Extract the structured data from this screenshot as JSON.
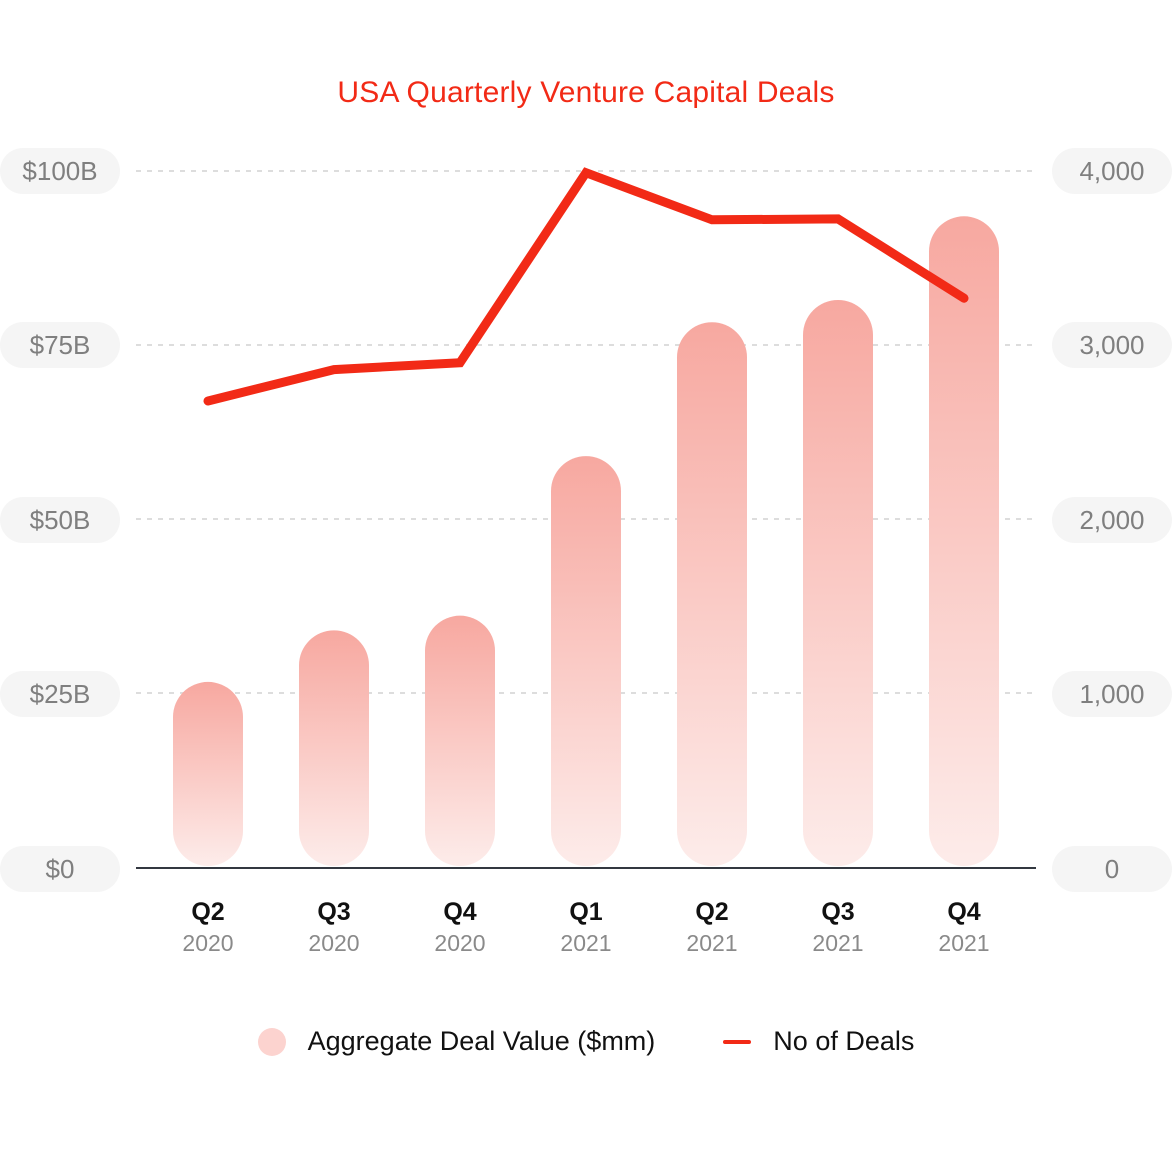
{
  "title": "USA Quarterly Venture Capital Deals",
  "colors": {
    "title": "#f22a16",
    "line": "#f22a16",
    "bar_top": "#f7a8a0",
    "bar_bottom": "#fdecea",
    "legend_dot": "#fcd3cf",
    "gridline": "#dddddd",
    "axis": "#333840",
    "tick_bg": "#f5f5f5",
    "tick_text": "#7f7f7f"
  },
  "left_axis": {
    "ticks": [
      "$100B",
      "$75B",
      "$50B",
      "$25B",
      "$0"
    ]
  },
  "right_axis": {
    "ticks": [
      "4,000",
      "3,000",
      "2,000",
      "1,000",
      "0"
    ]
  },
  "x_axis": {
    "labels": [
      {
        "quarter": "Q2",
        "year": "2020"
      },
      {
        "quarter": "Q3",
        "year": "2020"
      },
      {
        "quarter": "Q4",
        "year": "2020"
      },
      {
        "quarter": "Q1",
        "year": "2021"
      },
      {
        "quarter": "Q2",
        "year": "2021"
      },
      {
        "quarter": "Q3",
        "year": "2021"
      },
      {
        "quarter": "Q4",
        "year": "2021"
      }
    ]
  },
  "legend": {
    "bars_label": "Aggregate Deal Value ($mm)",
    "line_label": "No of Deals"
  },
  "chart_data": {
    "type": "bar",
    "title": "USA Quarterly Venture Capital Deals",
    "categories": [
      "Q2 2020",
      "Q3 2020",
      "Q4 2020",
      "Q1 2021",
      "Q2 2021",
      "Q3 2021",
      "Q4 2021"
    ],
    "series": [
      {
        "name": "Aggregate Deal Value ($mm)",
        "type": "bar",
        "axis": "left",
        "unit": "$B",
        "values": [
          26.7,
          34.1,
          36.2,
          59.1,
          78.3,
          81.5,
          93.5
        ]
      },
      {
        "name": "No of Deals",
        "type": "line",
        "axis": "right",
        "values": [
          2680,
          2860,
          2900,
          3990,
          3720,
          3725,
          3270
        ]
      }
    ],
    "xlabel": "",
    "ylabel_left": "",
    "ylabel_right": "",
    "ylim_left": [
      0,
      100
    ],
    "ylim_right": [
      0,
      4000
    ],
    "yticks_left": [
      "$0",
      "$25B",
      "$50B",
      "$75B",
      "$100B"
    ],
    "yticks_right": [
      "0",
      "1,000",
      "2,000",
      "3,000",
      "4,000"
    ],
    "grid": true,
    "legend_position": "bottom"
  }
}
